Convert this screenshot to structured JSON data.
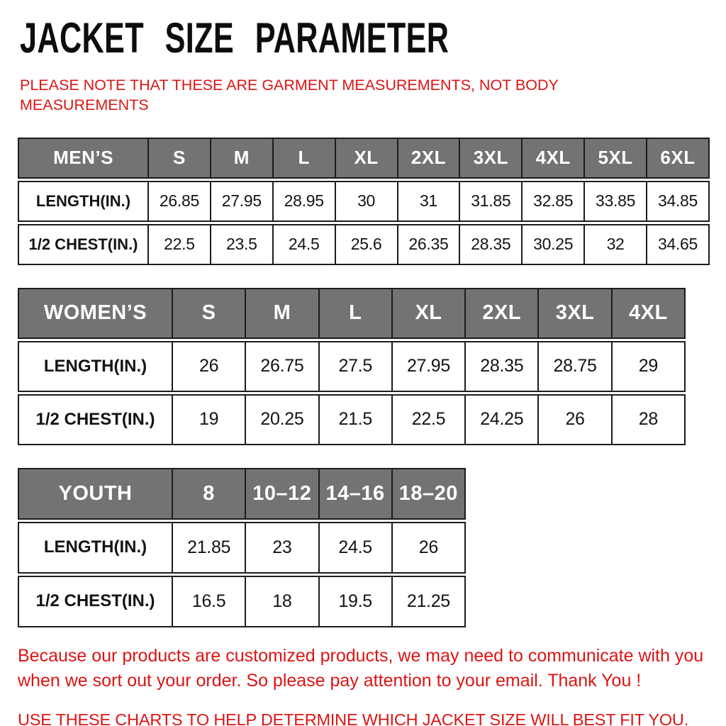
{
  "header": {
    "title": "JACKET SIZE PARAMETER",
    "note": {
      "line1": "PLEASE NOTE THAT THESE ARE GARMENT MEASUREMENTS, NOT BODY",
      "line2": "MEASUREMENTS"
    }
  },
  "colors": {
    "accent_red": "#dd1414",
    "header_gray": "#737373",
    "border_black": "#1c1c1c",
    "text_black": "#0d0d0d",
    "background": "#ffffff"
  },
  "tables": [
    {
      "id": "mens",
      "header": [
        "MEN’S",
        "S",
        "M",
        "L",
        "XL",
        "2XL",
        "3XL",
        "4XL",
        "5XL",
        "6XL"
      ],
      "rows": [
        {
          "label": "LENGTH(IN.)",
          "values": [
            "26.85",
            "27.95",
            "28.95",
            "30",
            "31",
            "31.85",
            "32.85",
            "33.85",
            "34.85"
          ]
        },
        {
          "label": "1/2 CHEST(IN.)",
          "values": [
            "22.5",
            "23.5",
            "24.5",
            "25.6",
            "26.35",
            "28.35",
            "30.25",
            "32",
            "34.65"
          ]
        }
      ]
    },
    {
      "id": "womens",
      "header": [
        "WOMEN’S",
        "S",
        "M",
        "L",
        "XL",
        "2XL",
        "3XL",
        "4XL"
      ],
      "rows": [
        {
          "label": "LENGTH(IN.)",
          "values": [
            "26",
            "26.75",
            "27.5",
            "27.95",
            "28.35",
            "28.75",
            "29"
          ]
        },
        {
          "label": "1/2 CHEST(IN.)",
          "values": [
            "19",
            "20.25",
            "21.5",
            "22.5",
            "24.25",
            "26",
            "28"
          ]
        }
      ]
    },
    {
      "id": "youth",
      "header": [
        "YOUTH",
        "8",
        "10–12",
        "14–16",
        "18–20"
      ],
      "rows": [
        {
          "label": "LENGTH(IN.)",
          "values": [
            "21.85",
            "23",
            "24.5",
            "26"
          ]
        },
        {
          "label": "1/2 CHEST(IN.)",
          "values": [
            "16.5",
            "18",
            "19.5",
            "21.25"
          ]
        }
      ]
    }
  ],
  "footer": {
    "communication_note": {
      "line1": "Because our products are customized products, we may need to communicate with you",
      "line2": "when we sort out your order. So please pay attention to your email. Thank You !"
    },
    "usage_note": "USE THESE CHARTS TO HELP DETERMINE WHICH JACKET SIZE WILL BEST FIT YOU."
  }
}
